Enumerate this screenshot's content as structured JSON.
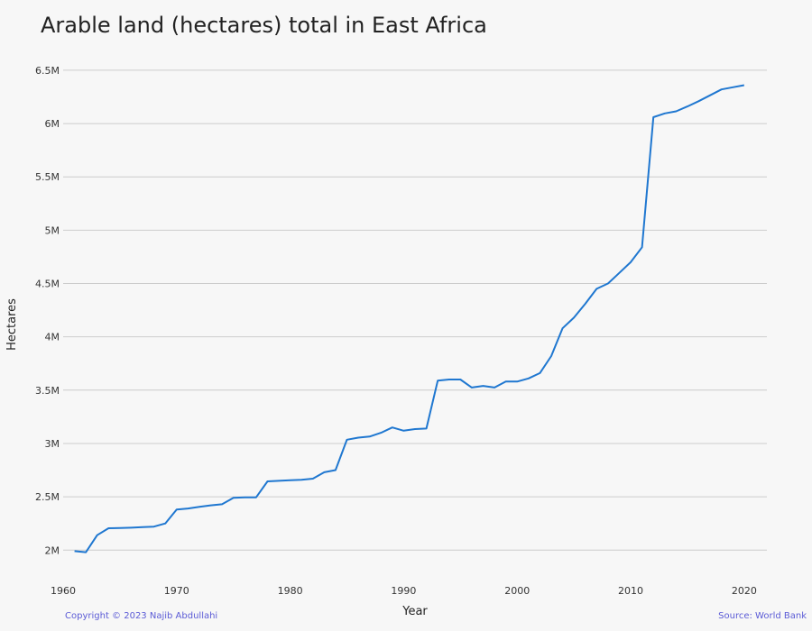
{
  "chart_data": {
    "type": "line",
    "title": "Arable land (hectares) total in East Africa",
    "xlabel": "Year",
    "ylabel": "Hectares",
    "xlim": [
      1960,
      2022
    ],
    "ylim": [
      1850000,
      6550000
    ],
    "x_ticks": [
      1960,
      1970,
      1980,
      1990,
      2000,
      2010,
      2020
    ],
    "x_tick_labels": [
      "1960",
      "1970",
      "1980",
      "1990",
      "2000",
      "2010",
      "2020"
    ],
    "y_ticks": [
      2000000,
      2500000,
      3000000,
      3500000,
      4000000,
      4500000,
      5000000,
      5500000,
      6000000,
      6500000
    ],
    "y_tick_labels": [
      "2M",
      "2.5M",
      "3M",
      "3.5M",
      "4M",
      "4.5M",
      "5M",
      "5.5M",
      "6M",
      "6.5M"
    ],
    "grid": "horizontal",
    "series": [
      {
        "color": "#1f77d0",
        "x": [
          1961,
          1962,
          1963,
          1964,
          1965,
          1966,
          1967,
          1968,
          1969,
          1970,
          1971,
          1972,
          1973,
          1974,
          1975,
          1976,
          1977,
          1978,
          1979,
          1980,
          1981,
          1982,
          1983,
          1984,
          1985,
          1986,
          1987,
          1988,
          1989,
          1990,
          1991,
          1992,
          1993,
          1994,
          1995,
          1996,
          1997,
          1998,
          1999,
          2000,
          2001,
          2002,
          2003,
          2004,
          2005,
          2006,
          2007,
          2008,
          2009,
          2010,
          2011,
          2012,
          2013,
          2014,
          2015,
          2016,
          2017,
          2018,
          2019,
          2020
        ],
        "values": [
          1990000,
          1980000,
          2140000,
          2205000,
          2207000,
          2210000,
          2215000,
          2220000,
          2250000,
          2380000,
          2390000,
          2405000,
          2420000,
          2430000,
          2490000,
          2495000,
          2495000,
          2645000,
          2650000,
          2655000,
          2660000,
          2670000,
          2730000,
          2750000,
          3035000,
          3055000,
          3065000,
          3100000,
          3150000,
          3120000,
          3135000,
          3140000,
          3590000,
          3600000,
          3600000,
          3525000,
          3540000,
          3525000,
          3580000,
          3580000,
          3610000,
          3660000,
          3820000,
          4080000,
          4180000,
          4310000,
          4450000,
          4500000,
          4600000,
          4700000,
          4840000,
          6060000,
          6095000,
          6115000,
          6160000,
          6210000,
          6265000,
          6320000,
          6340000,
          6360000
        ]
      }
    ]
  },
  "footer": {
    "copyright": "Copyright © 2023 Najib Abdullahi",
    "source": "Source: World Bank"
  }
}
